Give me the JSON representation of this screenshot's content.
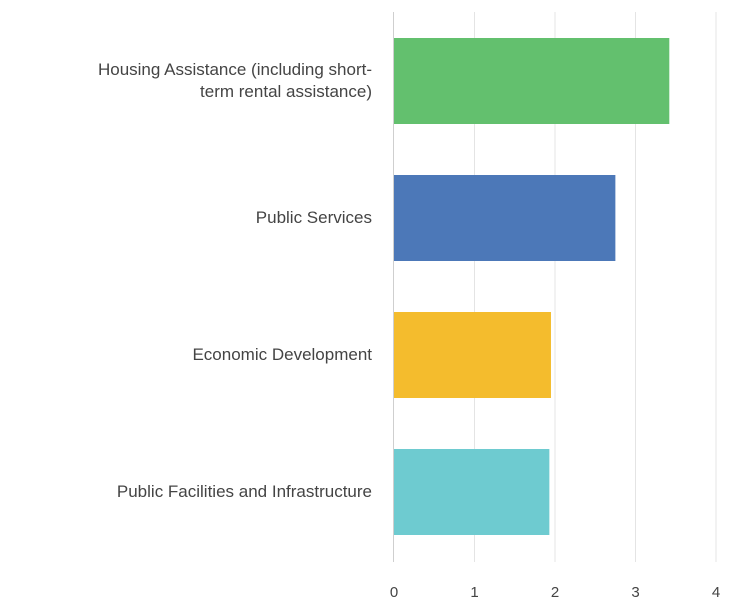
{
  "chart_data": {
    "type": "bar",
    "orientation": "horizontal",
    "categories": [
      "Housing Assistance (including short-\nterm rental assistance)",
      "Public Services",
      "Economic Development",
      "Public Facilities and Infrastructure"
    ],
    "values": [
      3.42,
      2.75,
      1.95,
      1.93
    ],
    "colors": [
      "#63c06e",
      "#4c78b8",
      "#f4bc2d",
      "#6ecbd0"
    ],
    "xlim": [
      0,
      4.4
    ],
    "xticks": [
      0,
      1,
      2,
      3,
      4
    ],
    "grid": true,
    "legend": "none"
  }
}
